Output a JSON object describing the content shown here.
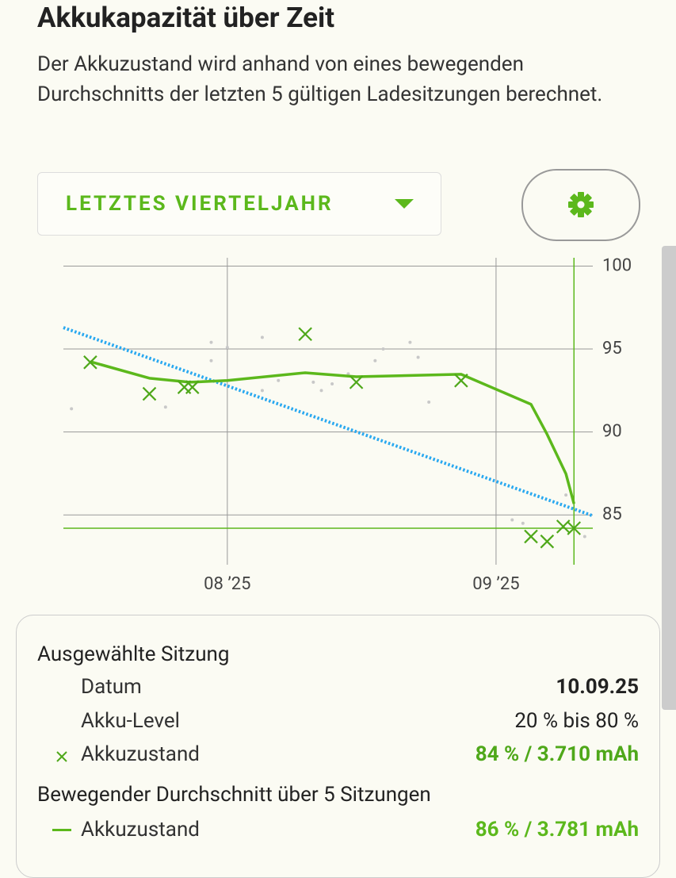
{
  "header": {
    "title": "Akkukapazität über Zeit",
    "description": "Der Akkuzustand wird anhand von eines bewegenden Durchschnitts der letzten 5 gültigen Ladesitzungen berechnet."
  },
  "controls": {
    "period": "LETZTES VIERTELJAHR"
  },
  "chart_data": {
    "type": "line",
    "xlim": [
      7.39,
      9.36
    ],
    "xticks": [
      {
        "value": 8,
        "label": "08 ’25"
      },
      {
        "value": 9,
        "label": "09 ’25"
      }
    ],
    "ylim": [
      82,
      100.5
    ],
    "yticks": [
      100,
      95,
      90,
      85
    ],
    "grid": true,
    "series": [
      {
        "style": "dot",
        "color": "#c8c8c8",
        "x": [
          7.42,
          7.77,
          7.94,
          8.0,
          7.94,
          8.13,
          8.13,
          8.19,
          8.32,
          8.35,
          8.39,
          8.45,
          8.55,
          8.58,
          8.68,
          8.71,
          8.75,
          9.06,
          9.1,
          9.26,
          9.33
        ],
        "values": [
          91.4,
          91.5,
          95.4,
          95.1,
          94.3,
          95.7,
          92.5,
          93.1,
          93.0,
          92.5,
          92.9,
          93.5,
          94.3,
          95.0,
          95.4,
          94.5,
          91.8,
          84.7,
          84.5,
          86.2,
          83.7
        ]
      },
      {
        "style": "dotted",
        "color": "#29a8f0",
        "x": [
          7.39,
          9.36
        ],
        "values": [
          96.29,
          84.95
        ]
      },
      {
        "style": "line",
        "color": "#5cb81c",
        "x": [
          7.49,
          7.71,
          7.86,
          8.0,
          8.29,
          8.48,
          8.87,
          9.13,
          9.19,
          9.26,
          9.29
        ],
        "values": [
          94.24,
          93.24,
          93.0,
          93.1,
          93.57,
          93.33,
          93.48,
          91.67,
          89.86,
          87.48,
          85.67
        ]
      },
      {
        "style": "x",
        "color": "#4fa81a",
        "x": [
          7.49,
          7.71,
          7.84,
          7.87,
          8.29,
          8.48,
          8.87,
          9.13,
          9.19,
          9.25,
          9.29
        ],
        "values": [
          94.2,
          92.3,
          92.7,
          92.7,
          95.9,
          93.0,
          93.1,
          83.7,
          83.4,
          84.3,
          84.2
        ]
      }
    ],
    "selection": {
      "x": 9.29,
      "y": 84.2,
      "color": "#5cb81c"
    }
  },
  "panel": {
    "selected_title": "Ausgewählte Sitzung",
    "rows": [
      [
        "Datum",
        "10.09.25"
      ],
      [
        "Akku-Level",
        "20 % bis 80 %"
      ],
      [
        "Akkuzustand",
        "84 % / 3.710 mAh"
      ]
    ],
    "average_title": "Bewegender Durchschnitt über 5 Sitzungen",
    "average_row": [
      "Akkuzustand",
      "86 % / 3.781 mAh"
    ]
  }
}
